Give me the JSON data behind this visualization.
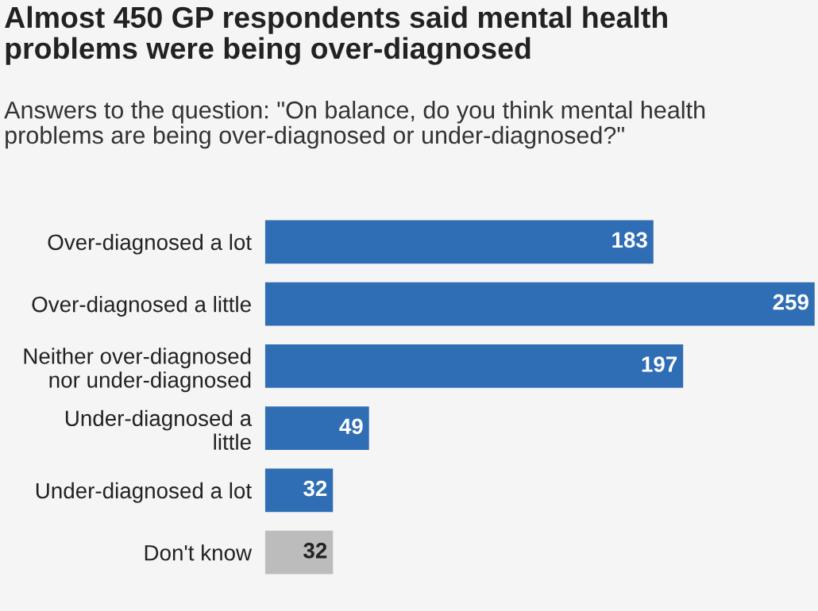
{
  "chart_data": {
    "type": "bar",
    "orientation": "horizontal",
    "title": "Almost 450 GP respondents said mental health\nproblems were being over-diagnosed",
    "subtitle": "Answers to the question: \"On balance, do you think mental health\nproblems are being over-diagnosed or under-diagnosed?\"",
    "categories": [
      "Over-diagnosed a lot",
      "Over-diagnosed a little",
      "Neither over-diagnosed\nnor under-diagnosed",
      "Under-diagnosed a\nlittle",
      "Under-diagnosed a lot",
      "Don't know"
    ],
    "values": [
      183,
      259,
      197,
      49,
      32,
      32
    ],
    "colors": [
      "#2f6eb4",
      "#2f6eb4",
      "#2f6eb4",
      "#2f6eb4",
      "#2f6eb4",
      "#bcbcbc"
    ],
    "data_labels": true,
    "tick_labels": "y",
    "grid": false,
    "legend": false
  }
}
